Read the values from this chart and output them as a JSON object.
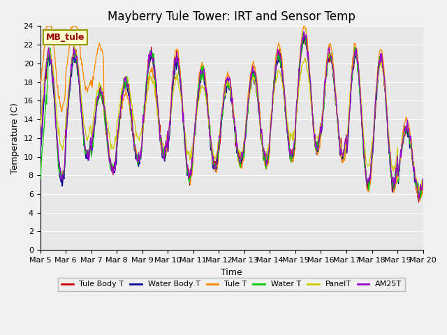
{
  "title": "Mayberry Tule Tower: IRT and Sensor Temp",
  "xlabel": "Time",
  "ylabel": "Temperature (C)",
  "ylim": [
    0,
    24
  ],
  "yticks": [
    0,
    2,
    4,
    6,
    8,
    10,
    12,
    14,
    16,
    18,
    20,
    22,
    24
  ],
  "xtick_labels": [
    "Mar 5",
    "Mar 6",
    "Mar 7",
    "Mar 8",
    "Mar 9",
    "Mar 10",
    "Mar 11",
    "Mar 12",
    "Mar 13",
    "Mar 14",
    "Mar 15",
    "Mar 16",
    "Mar 17",
    "Mar 18",
    "Mar 19",
    "Mar 20"
  ],
  "xtick_positions": [
    0,
    1,
    2,
    3,
    4,
    5,
    6,
    7,
    8,
    9,
    10,
    11,
    12,
    13,
    14,
    15
  ],
  "series_colors": {
    "Tule Body T": "#cc0000",
    "Water Body T": "#000099",
    "Tule T": "#ff8800",
    "Water T": "#00cc00",
    "PanelT": "#cccc00",
    "AM25T": "#9900cc"
  },
  "legend_label": "MB_tule",
  "legend_text_color": "#990000",
  "legend_bg_color": "#ffffcc",
  "legend_edge_color": "#999900",
  "plot_bg_color": "#e8e8e8",
  "fig_bg_color": "#f0f0f0",
  "grid_color": "#ffffff",
  "title_fontsize": 12,
  "axis_fontsize": 9,
  "tick_fontsize": 8
}
